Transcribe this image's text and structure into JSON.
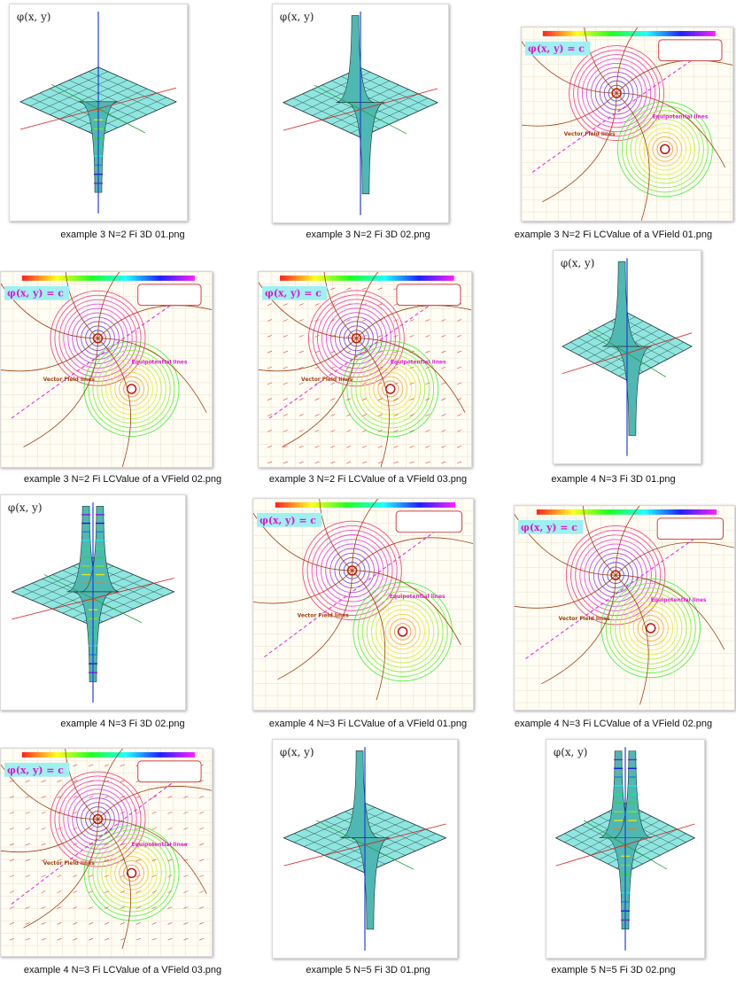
{
  "files": [
    {
      "name": "example 3  N=2  Fi 3D 01.png",
      "kind": "3d",
      "variant": "funnel",
      "phi_label": "φ(x, y)"
    },
    {
      "name": "example 3  N=2  Fi 3D 02.png",
      "kind": "3d",
      "variant": "twin",
      "phi_label": "φ(x, y)"
    },
    {
      "name": "example 3  N=2  Fi LCValue of a VField 01.png",
      "kind": "2d",
      "variant": "v1",
      "phi_label": "φ(x, y) = c",
      "equip_label": "Equipotential lines",
      "field_label": "Vector Field lines"
    },
    {
      "name": "example 3  N=2  Fi LCValue of a VField 02.png",
      "kind": "2d",
      "variant": "v2",
      "phi_label": "φ(x, y) = c",
      "equip_label": "Equipotential lines",
      "field_label": "Vector Field lines"
    },
    {
      "name": "example 3  N=2  Fi LCValue of a VField 03.png",
      "kind": "2d",
      "variant": "v3",
      "phi_label": "φ(x, y) = c",
      "equip_label": "Equipotential lines",
      "field_label": "Vector Field lines"
    },
    {
      "name": "example 4  N=3  Fi 3D 01.png",
      "kind": "3d",
      "variant": "twin",
      "phi_label": "φ(x, y)"
    },
    {
      "name": "example 4  N=3  Fi 3D 02.png",
      "kind": "3d",
      "variant": "colorful",
      "phi_label": "φ(x, y)"
    },
    {
      "name": "example 4  N=3  Fi LCValue of a VField 01.png",
      "kind": "2d",
      "variant": "v1",
      "phi_label": "φ(x, y) = c",
      "equip_label": "Equipotential lines",
      "field_label": "Vector Field lines"
    },
    {
      "name": "example 4  N=3  Fi LCValue of a VField 02.png",
      "kind": "2d",
      "variant": "v2",
      "phi_label": "φ(x, y) = c",
      "equip_label": "Equipotential lines",
      "field_label": "Vector Field lines"
    },
    {
      "name": "example 4  N=3  Fi LCValue of a VField 03.png",
      "kind": "2d",
      "variant": "v3",
      "phi_label": "φ(x, y) = c",
      "equip_label": "Equipotential lines",
      "field_label": "Vector Field lines"
    },
    {
      "name": "example 5  N=5  Fi 3D 01.png",
      "kind": "3d",
      "variant": "twin",
      "phi_label": "φ(x, y)"
    },
    {
      "name": "example 5  N=5  Fi 3D 02.png",
      "kind": "3d",
      "variant": "colorful",
      "phi_label": "φ(x, y)"
    }
  ],
  "colors": {
    "surface": "#8fe6e0",
    "surface_dark": "#4fb8b2",
    "mesh": "#1a2a2a",
    "axis_blue": "#1f3fd6",
    "equip_magenta": "#e020d8",
    "field_brown": "#a04010",
    "phi_badge": "#9ff0f0",
    "phi_text": "#e018d0"
  }
}
